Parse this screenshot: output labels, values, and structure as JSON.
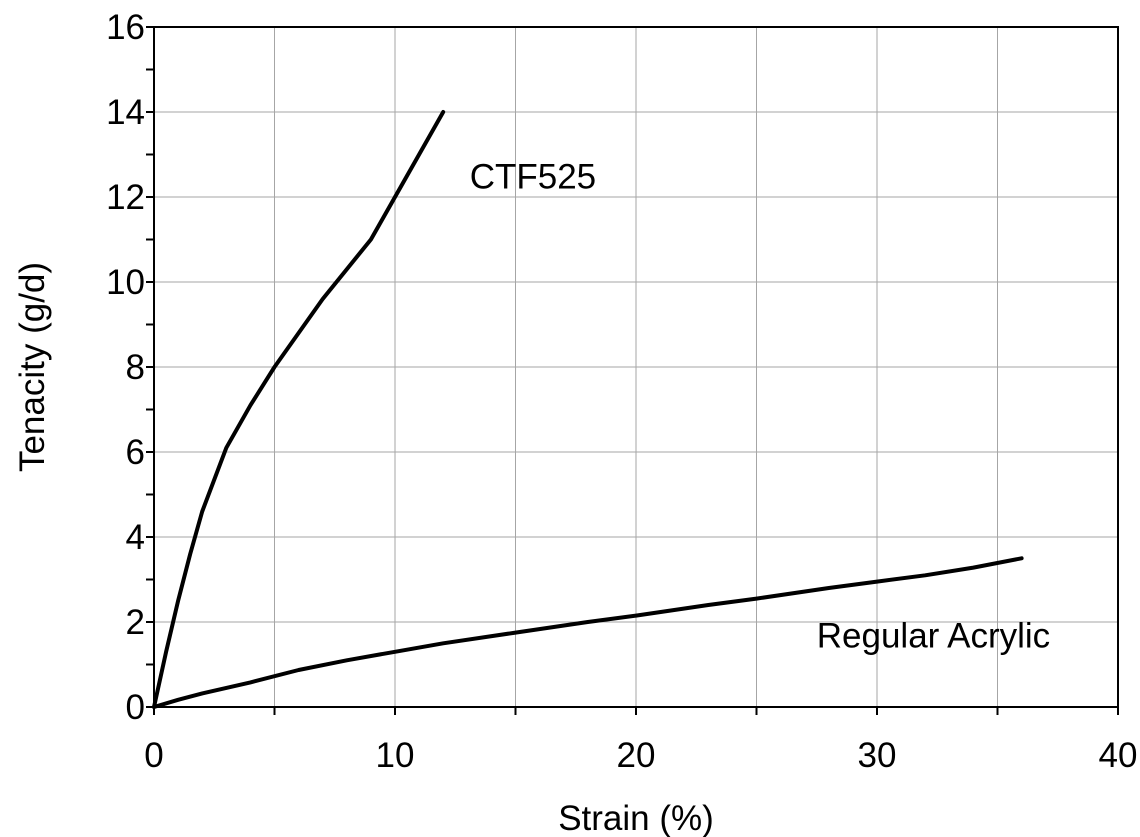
{
  "chart_data": {
    "type": "line",
    "title": "",
    "xlabel": "Strain (%)",
    "ylabel": "Tenacity (g/d)",
    "xlim": [
      0,
      40
    ],
    "ylim": [
      0,
      16
    ],
    "x_ticks": [
      0,
      10,
      20,
      30,
      40
    ],
    "y_ticks": [
      0,
      2,
      4,
      6,
      8,
      10,
      12,
      14,
      16
    ],
    "x_minor_step": 5,
    "y_minor_step": 1,
    "grid": true,
    "legend": "none",
    "series": [
      {
        "name": "CTF525",
        "label_at": [
          13.1,
          12.2
        ],
        "points": [
          [
            0,
            0
          ],
          [
            0.5,
            1.3
          ],
          [
            1,
            2.5
          ],
          [
            1.5,
            3.6
          ],
          [
            2,
            4.6
          ],
          [
            3,
            6.1
          ],
          [
            4,
            7.1
          ],
          [
            5,
            8.0
          ],
          [
            6,
            8.8
          ],
          [
            7,
            9.6
          ],
          [
            8,
            10.3
          ],
          [
            9,
            11.0
          ],
          [
            10,
            12.0
          ],
          [
            11,
            13.0
          ],
          [
            12,
            14.0
          ]
        ]
      },
      {
        "name": "Regular Acrylic",
        "label_at": [
          27.5,
          1.4
        ],
        "points": [
          [
            0,
            0
          ],
          [
            1,
            0.17
          ],
          [
            2,
            0.32
          ],
          [
            4,
            0.58
          ],
          [
            6,
            0.87
          ],
          [
            8,
            1.1
          ],
          [
            10,
            1.3
          ],
          [
            12,
            1.5
          ],
          [
            15,
            1.75
          ],
          [
            18,
            2.0
          ],
          [
            20,
            2.15
          ],
          [
            23,
            2.4
          ],
          [
            25,
            2.55
          ],
          [
            28,
            2.8
          ],
          [
            30,
            2.95
          ],
          [
            32,
            3.1
          ],
          [
            34,
            3.28
          ],
          [
            36,
            3.5
          ]
        ]
      }
    ],
    "colors": {
      "line": "#000000",
      "grid": "#a6a6a6",
      "background": "#ffffff"
    }
  }
}
